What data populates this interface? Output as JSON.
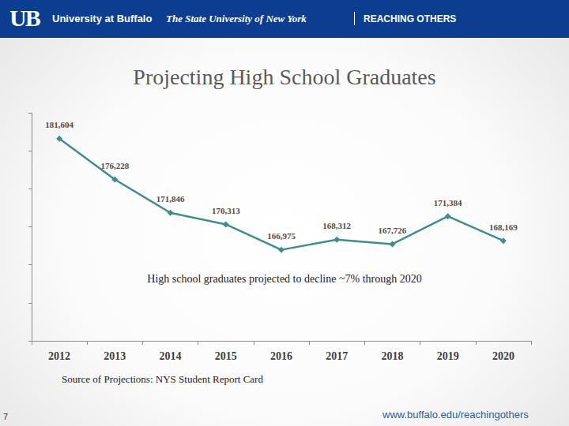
{
  "header": {
    "logo": "UB",
    "university": "University at Buffalo",
    "subtitle": "The State University of New York",
    "tagline": "REACHING OTHERS"
  },
  "chart_data": {
    "type": "line",
    "title": "Projecting High School Graduates",
    "categories": [
      "2012",
      "2013",
      "2014",
      "2015",
      "2016",
      "2017",
      "2018",
      "2019",
      "2020"
    ],
    "values": [
      181604,
      176228,
      171846,
      170313,
      166975,
      168312,
      167726,
      171384,
      168169
    ],
    "value_labels": [
      "181,604",
      "176,228",
      "171,846",
      "170,313",
      "166,975",
      "168,312",
      "167,726",
      "171,384",
      "168,169"
    ],
    "color": "#3d8f8f",
    "marker": "diamond",
    "data_labels": true,
    "ylim": [
      155000,
      185000
    ],
    "yticks": [
      155000,
      160000,
      165000,
      170000,
      175000,
      180000,
      185000
    ],
    "grid": false,
    "tick_labels": "x",
    "annotation": "High school graduates projected to decline ~7% through 2020",
    "source": "Source of Projections: NYS Student Report Card"
  },
  "footer": {
    "url": "www.buffalo.edu/reachingothers",
    "page": 7
  }
}
